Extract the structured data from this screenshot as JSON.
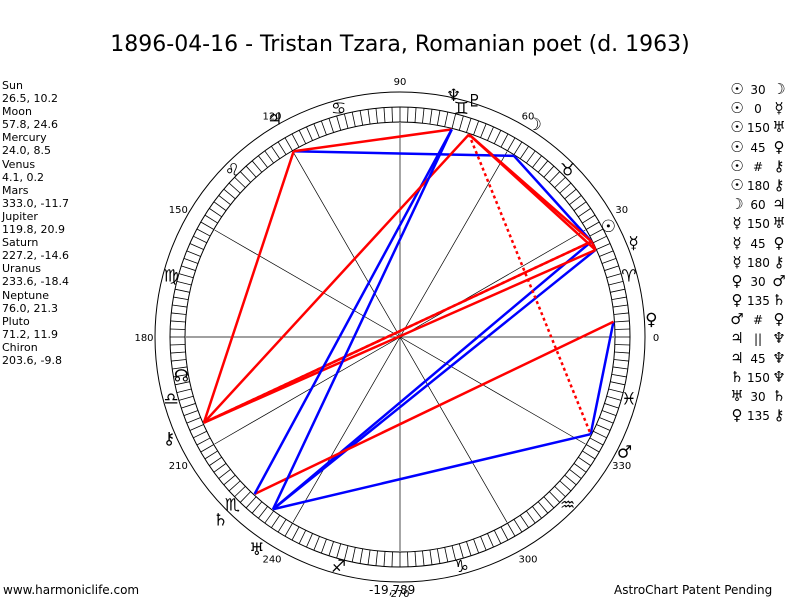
{
  "title": "1896-04-16 - Tristan Tzara, Romanian poet (d. 1963)",
  "planets": [
    {
      "name": "Sun",
      "values": "26.5, 10.2",
      "lon": 26.5,
      "glyph": "☉",
      "icon": "sun-icon",
      "color": "#000000"
    },
    {
      "name": "Moon",
      "values": "57.8, 24.6",
      "lon": 57.8,
      "glyph": "☽",
      "icon": "moon-icon",
      "color": "#000000"
    },
    {
      "name": "Mercury",
      "values": "24.0, 8.5",
      "lon": 24.0,
      "glyph": "☿",
      "icon": "mercury-icon",
      "color": "#000000"
    },
    {
      "name": "Venus",
      "values": "4.1, 0.2",
      "lon": 4.1,
      "glyph": "♀",
      "icon": "venus-icon",
      "color": "#000000"
    },
    {
      "name": "Mars",
      "values": "333.0, -11.7",
      "lon": 333.0,
      "glyph": "♂",
      "icon": "mars-icon",
      "color": "#000000"
    },
    {
      "name": "Jupiter",
      "values": "119.8, 20.9",
      "lon": 119.8,
      "glyph": "♃",
      "icon": "jupiter-icon",
      "color": "#000000"
    },
    {
      "name": "Saturn",
      "values": "227.2, -14.6",
      "lon": 227.2,
      "glyph": "♄",
      "icon": "saturn-icon",
      "color": "#000000"
    },
    {
      "name": "Uranus",
      "values": "233.6, -18.4",
      "lon": 233.6,
      "glyph": "♅",
      "icon": "uranus-icon",
      "color": "#000000"
    },
    {
      "name": "Neptune",
      "values": "76.0, 21.3",
      "lon": 76.0,
      "glyph": "♆",
      "icon": "neptune-icon",
      "color": "#000000"
    },
    {
      "name": "Pluto",
      "values": "71.2, 11.9",
      "lon": 71.2,
      "glyph": "♇",
      "icon": "pluto-icon",
      "color": "#000000"
    },
    {
      "name": "Chiron",
      "values": "203.6, -9.8",
      "lon": 203.6,
      "glyph": "⚷",
      "icon": "chiron-icon",
      "color": "#000000"
    }
  ],
  "degree_labels": [
    {
      "text": "0",
      "deg": 0
    },
    {
      "text": "30",
      "deg": 30
    },
    {
      "text": "60",
      "deg": 60
    },
    {
      "text": "90",
      "deg": 90
    },
    {
      "text": "120",
      "deg": 120
    },
    {
      "text": "150",
      "deg": 150
    },
    {
      "text": "180",
      "deg": 180
    },
    {
      "text": "210",
      "deg": 210
    },
    {
      "text": "240",
      "deg": 240
    },
    {
      "text": "270",
      "deg": 270
    },
    {
      "text": "300",
      "deg": 300
    },
    {
      "text": "330",
      "deg": 330
    }
  ],
  "zodiac": [
    {
      "glyph": "♈",
      "icon": "aries-icon",
      "deg": 15
    },
    {
      "glyph": "♉",
      "icon": "taurus-icon",
      "deg": 45
    },
    {
      "glyph": "♊",
      "icon": "gemini-icon",
      "deg": 75
    },
    {
      "glyph": "♋",
      "icon": "cancer-icon",
      "deg": 105
    },
    {
      "glyph": "♌",
      "icon": "leo-icon",
      "deg": 135
    },
    {
      "glyph": "♍",
      "icon": "virgo-icon",
      "deg": 165
    },
    {
      "glyph": "♎",
      "icon": "libra-icon",
      "deg": 195
    },
    {
      "glyph": "♏",
      "icon": "scorpio-icon",
      "deg": 225
    },
    {
      "glyph": "♐",
      "icon": "sagittarius-icon",
      "deg": 255
    },
    {
      "glyph": "♑",
      "icon": "capricorn-icon",
      "deg": 285
    },
    {
      "glyph": "♒",
      "icon": "aquarius-icon",
      "deg": 315
    },
    {
      "glyph": "♓",
      "icon": "pisces-icon",
      "deg": 345
    }
  ],
  "node_glyph": {
    "glyph": "☊",
    "icon": "lunar-node-icon",
    "deg": 190
  },
  "aspect_lines": [
    {
      "from": "Sun",
      "to": "Mercury",
      "color": "#ff0000",
      "dotted": false
    },
    {
      "from": "Sun",
      "to": "Moon",
      "color": "#0000ff",
      "dotted": false
    },
    {
      "from": "Sun",
      "to": "Uranus",
      "color": "#0000ff",
      "dotted": false
    },
    {
      "from": "Sun",
      "to": "Pluto",
      "color": "#ff0000",
      "dotted": false
    },
    {
      "from": "Sun",
      "to": "Chiron",
      "color": "#ff0000",
      "dotted": true
    },
    {
      "from": "Sun",
      "to": "Chiron",
      "color": "#ff0000",
      "dotted": false
    },
    {
      "from": "Moon",
      "to": "Jupiter",
      "color": "#0000ff",
      "dotted": false
    },
    {
      "from": "Mercury",
      "to": "Uranus",
      "color": "#0000ff",
      "dotted": false
    },
    {
      "from": "Mercury",
      "to": "Pluto",
      "color": "#ff0000",
      "dotted": false
    },
    {
      "from": "Mercury",
      "to": "Chiron",
      "color": "#ff0000",
      "dotted": false
    },
    {
      "from": "Venus",
      "to": "Mars",
      "color": "#0000ff",
      "dotted": false
    },
    {
      "from": "Venus",
      "to": "Saturn",
      "color": "#ff0000",
      "dotted": false
    },
    {
      "from": "Jupiter",
      "to": "Neptune",
      "color": "#ff0000",
      "dotted": false
    },
    {
      "from": "Jupiter",
      "to": "Chiron",
      "color": "#ff0000",
      "dotted": false
    },
    {
      "from": "Saturn",
      "to": "Neptune",
      "color": "#0000ff",
      "dotted": false
    },
    {
      "from": "Uranus",
      "to": "Mars",
      "color": "#0000ff",
      "dotted": false
    },
    {
      "from": "Pluto",
      "to": "Chiron",
      "color": "#ff0000",
      "dotted": false
    },
    {
      "from": "Pluto",
      "to": "Mars",
      "color": "#ff0000",
      "dotted": true
    },
    {
      "from": "Neptune",
      "to": "Uranus",
      "color": "#0000ff",
      "dotted": false
    }
  ],
  "aspects": [
    {
      "p1": "☉",
      "sym": "30",
      "p2": "☽",
      "icon1": "sun-icon",
      "icon2": "moon-icon"
    },
    {
      "p1": "☉",
      "sym": "0",
      "p2": "☿",
      "icon1": "sun-icon",
      "icon2": "mercury-icon"
    },
    {
      "p1": "☉",
      "sym": "150",
      "p2": "♅",
      "icon1": "sun-icon",
      "icon2": "uranus-icon"
    },
    {
      "p1": "☉",
      "sym": "45",
      "p2": "♀",
      "icon1": "sun-icon",
      "icon2": "venus-icon"
    },
    {
      "p1": "☉",
      "sym": "#",
      "p2": "⚷",
      "icon1": "sun-icon",
      "icon2": "chiron-icon"
    },
    {
      "p1": "☉",
      "sym": "180",
      "p2": "⚷",
      "icon1": "sun-icon",
      "icon2": "chiron-icon"
    },
    {
      "p1": "☽",
      "sym": "60",
      "p2": "♃",
      "icon1": "moon-icon",
      "icon2": "jupiter-icon"
    },
    {
      "p1": "☿",
      "sym": "150",
      "p2": "♅",
      "icon1": "mercury-icon",
      "icon2": "uranus-icon"
    },
    {
      "p1": "☿",
      "sym": "45",
      "p2": "♀",
      "icon1": "mercury-icon",
      "icon2": "venus-icon"
    },
    {
      "p1": "☿",
      "sym": "180",
      "p2": "⚷",
      "icon1": "mercury-icon",
      "icon2": "chiron-icon"
    },
    {
      "p1": "♀",
      "sym": "30",
      "p2": "♂",
      "icon1": "venus-icon",
      "icon2": "mars-icon"
    },
    {
      "p1": "♀",
      "sym": "135",
      "p2": "♄",
      "icon1": "venus-icon",
      "icon2": "saturn-icon"
    },
    {
      "p1": "♂",
      "sym": "#",
      "p2": "♀",
      "icon1": "mars-icon",
      "icon2": "venus-icon"
    },
    {
      "p1": "♃",
      "sym": "||",
      "p2": "♆",
      "icon1": "jupiter-icon",
      "icon2": "neptune-icon"
    },
    {
      "p1": "♃",
      "sym": "45",
      "p2": "♆",
      "icon1": "jupiter-icon",
      "icon2": "neptune-icon"
    },
    {
      "p1": "♄",
      "sym": "150",
      "p2": "♆",
      "icon1": "saturn-icon",
      "icon2": "neptune-icon"
    },
    {
      "p1": "♅",
      "sym": "30",
      "p2": "♄",
      "icon1": "uranus-icon",
      "icon2": "saturn-icon"
    },
    {
      "p1": "♀",
      "sym": "135",
      "p2": "⚷",
      "icon1": "venus-icon",
      "icon2": "chiron-icon"
    }
  ],
  "footer": {
    "left": "www.harmoniclife.com",
    "center": "-19,789",
    "right": "AstroChart Patent Pending"
  }
}
